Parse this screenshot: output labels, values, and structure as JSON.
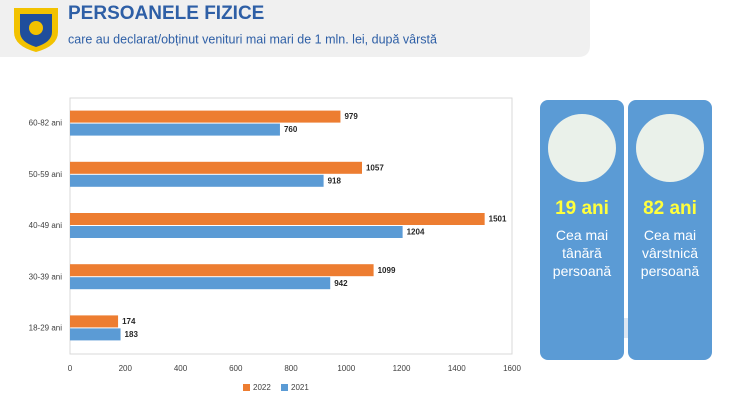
{
  "chart_data": {
    "type": "hbar",
    "title": "PERSOANELE FIZICE",
    "subtitle": "care au declarat/obținut venituri mai mari de 1 mln. lei, după vârstă",
    "categories": [
      "60-82 ani",
      "50-59 ani",
      "40-49 ani",
      "30-39 ani",
      "18-29 ani"
    ],
    "series": [
      {
        "name": "2022",
        "color": "#ed7d31",
        "values": [
          979,
          1057,
          1501,
          1099,
          174
        ]
      },
      {
        "name": "2021",
        "color": "#5b9bd5",
        "values": [
          760,
          918,
          1204,
          942,
          183
        ]
      }
    ],
    "xlim": [
      0,
      1600
    ],
    "xticks": [
      0,
      200,
      400,
      600,
      800,
      1000,
      1200,
      1400,
      1600
    ],
    "grid": false,
    "legend": "bottom"
  },
  "panels": [
    {
      "value": "19 ani",
      "caption": "Cea mai tânără persoană"
    },
    {
      "value": "82 ani",
      "caption": "Cea mai vârstnică persoană"
    }
  ]
}
